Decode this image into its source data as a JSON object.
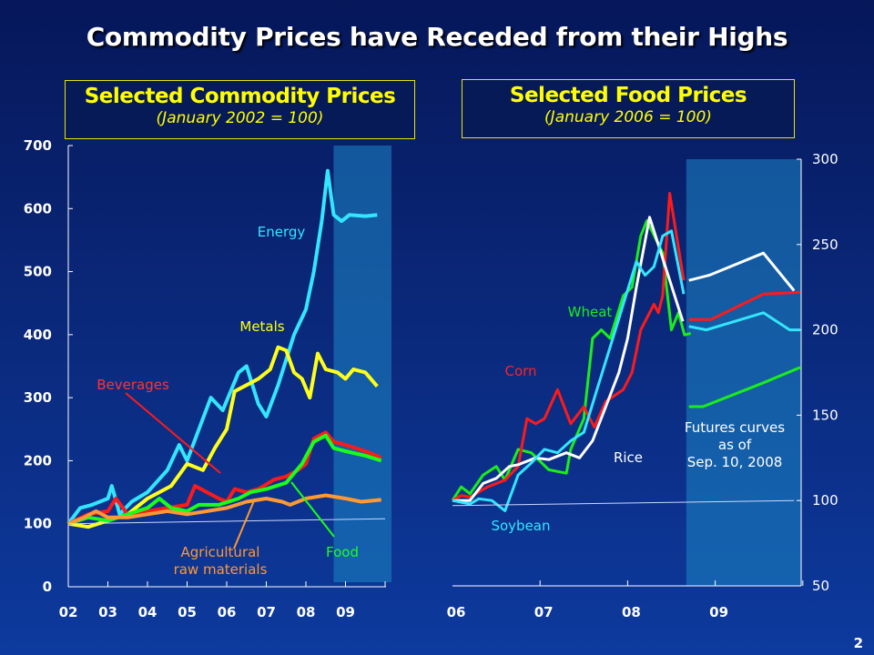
{
  "title": "Commodity Prices have Receded from their Highs",
  "page_number": "2",
  "chart_data": [
    {
      "type": "line",
      "title": "Selected Commodity Prices",
      "subtitle": "(January 2002 = 100)",
      "xlabel": "",
      "ylabel": "",
      "x_ticks": [
        "02",
        "03",
        "04",
        "05",
        "06",
        "07",
        "08",
        "09"
      ],
      "y_ticks": [
        "0",
        "100",
        "200",
        "300",
        "400",
        "500",
        "600",
        "700"
      ],
      "ylim": [
        0,
        700
      ],
      "xlim": [
        2002,
        2010
      ],
      "y_axis": "left",
      "shaded_forecast_region": [
        2008.7,
        2010
      ],
      "series": [
        {
          "name": "Energy",
          "color": "#33e6ff",
          "points": [
            [
              2002,
              100
            ],
            [
              2002.3,
              125
            ],
            [
              2002.6,
              130
            ],
            [
              2003,
              140
            ],
            [
              2003.1,
              160
            ],
            [
              2003.3,
              115
            ],
            [
              2003.6,
              135
            ],
            [
              2004,
              150
            ],
            [
              2004.5,
              185
            ],
            [
              2004.8,
              225
            ],
            [
              2005,
              200
            ],
            [
              2005.3,
              250
            ],
            [
              2005.6,
              300
            ],
            [
              2005.9,
              280
            ],
            [
              2006.3,
              340
            ],
            [
              2006.5,
              350
            ],
            [
              2006.8,
              290
            ],
            [
              2007,
              270
            ],
            [
              2007.3,
              320
            ],
            [
              2007.7,
              400
            ],
            [
              2008,
              440
            ],
            [
              2008.2,
              500
            ],
            [
              2008.4,
              580
            ],
            [
              2008.55,
              660
            ],
            [
              2008.7,
              590
            ],
            [
              2008.9,
              580
            ],
            [
              2009.1,
              590
            ],
            [
              2009.5,
              588
            ],
            [
              2009.8,
              590
            ]
          ]
        },
        {
          "name": "Metals",
          "color": "#ffff1a",
          "points": [
            [
              2002,
              100
            ],
            [
              2002.5,
              95
            ],
            [
              2003,
              105
            ],
            [
              2003.5,
              115
            ],
            [
              2004,
              140
            ],
            [
              2004.3,
              150
            ],
            [
              2004.6,
              160
            ],
            [
              2005,
              195
            ],
            [
              2005.4,
              185
            ],
            [
              2005.7,
              220
            ],
            [
              2006,
              250
            ],
            [
              2006.2,
              310
            ],
            [
              2006.5,
              320
            ],
            [
              2006.8,
              330
            ],
            [
              2007.1,
              345
            ],
            [
              2007.3,
              380
            ],
            [
              2007.5,
              375
            ],
            [
              2007.7,
              340
            ],
            [
              2007.9,
              330
            ],
            [
              2008.1,
              300
            ],
            [
              2008.3,
              370
            ],
            [
              2008.5,
              345
            ],
            [
              2008.8,
              340
            ],
            [
              2009,
              330
            ],
            [
              2009.2,
              345
            ],
            [
              2009.5,
              340
            ],
            [
              2009.8,
              318
            ]
          ]
        },
        {
          "name": "Beverages",
          "color": "#ff1a1a",
          "points": [
            [
              2002,
              100
            ],
            [
              2002.5,
              115
            ],
            [
              2003,
              120
            ],
            [
              2003.2,
              140
            ],
            [
              2003.5,
              115
            ],
            [
              2004,
              120
            ],
            [
              2004.5,
              125
            ],
            [
              2005,
              130
            ],
            [
              2005.2,
              160
            ],
            [
              2005.5,
              150
            ],
            [
              2005.8,
              140
            ],
            [
              2006,
              135
            ],
            [
              2006.2,
              155
            ],
            [
              2006.5,
              150
            ],
            [
              2006.8,
              155
            ],
            [
              2007.2,
              170
            ],
            [
              2007.5,
              175
            ],
            [
              2007.8,
              185
            ],
            [
              2008,
              195
            ],
            [
              2008.2,
              235
            ],
            [
              2008.5,
              245
            ],
            [
              2008.7,
              230
            ],
            [
              2009,
              225
            ],
            [
              2009.5,
              215
            ],
            [
              2009.9,
              205
            ]
          ]
        },
        {
          "name": "Food",
          "color": "#1aff1a",
          "points": [
            [
              2002,
              100
            ],
            [
              2002.5,
              110
            ],
            [
              2003,
              105
            ],
            [
              2003.5,
              115
            ],
            [
              2004,
              125
            ],
            [
              2004.3,
              140
            ],
            [
              2004.6,
              125
            ],
            [
              2005,
              120
            ],
            [
              2005.3,
              130
            ],
            [
              2005.8,
              130
            ],
            [
              2006.3,
              140
            ],
            [
              2006.6,
              150
            ],
            [
              2007,
              155
            ],
            [
              2007.5,
              165
            ],
            [
              2007.9,
              195
            ],
            [
              2008.2,
              230
            ],
            [
              2008.5,
              240
            ],
            [
              2008.7,
              220
            ],
            [
              2009,
              215
            ],
            [
              2009.5,
              208
            ],
            [
              2009.9,
              200
            ]
          ]
        },
        {
          "name": "Agricultural raw materials",
          "color": "#ff9933",
          "points": [
            [
              2002,
              100
            ],
            [
              2002.4,
              110
            ],
            [
              2002.7,
              120
            ],
            [
              2003,
              110
            ],
            [
              2003.5,
              110
            ],
            [
              2004,
              115
            ],
            [
              2004.5,
              120
            ],
            [
              2005,
              115
            ],
            [
              2005.5,
              120
            ],
            [
              2006,
              125
            ],
            [
              2006.5,
              135
            ],
            [
              2007,
              140
            ],
            [
              2007.4,
              135
            ],
            [
              2007.6,
              130
            ],
            [
              2008,
              140
            ],
            [
              2008.5,
              145
            ],
            [
              2009,
              140
            ],
            [
              2009.4,
              135
            ],
            [
              2009.9,
              138
            ]
          ]
        },
        {
          "name": "",
          "color": "#ccd6ff",
          "points": [
            [
              2002,
              100
            ],
            [
              2010,
              108
            ]
          ]
        }
      ],
      "labels": {
        "energy": "Energy",
        "metals": "Metals",
        "beverages": "Beverages",
        "agri_1": "Agricultural",
        "agri_2": "raw materials",
        "food": "Food"
      }
    },
    {
      "type": "line",
      "title": "Selected Food Prices",
      "subtitle": "(January 2006 = 100)",
      "xlabel": "",
      "ylabel": "",
      "x_ticks": [
        "06",
        "07",
        "08",
        "09"
      ],
      "y_ticks": [
        "50",
        "100",
        "150",
        "200",
        "250",
        "300"
      ],
      "ylim": [
        50,
        300
      ],
      "xlim": [
        2006,
        2010
      ],
      "y_axis": "right",
      "shaded_forecast_region": [
        2008.67,
        2010
      ],
      "series": [
        {
          "name": "Wheat",
          "color": "#1aee1a",
          "points": [
            [
              2006,
              100
            ],
            [
              2006.1,
              108
            ],
            [
              2006.2,
              104
            ],
            [
              2006.35,
              115
            ],
            [
              2006.5,
              120
            ],
            [
              2006.6,
              112
            ],
            [
              2006.75,
              130
            ],
            [
              2006.9,
              128
            ],
            [
              2007.1,
              118
            ],
            [
              2007.3,
              116
            ],
            [
              2007.35,
              130
            ],
            [
              2007.5,
              148
            ],
            [
              2007.6,
              195
            ],
            [
              2007.7,
              200
            ],
            [
              2007.8,
              195
            ],
            [
              2007.95,
              220
            ],
            [
              2008.05,
              225
            ],
            [
              2008.15,
              255
            ],
            [
              2008.22,
              264
            ],
            [
              2008.4,
              245
            ],
            [
              2008.5,
              200
            ],
            [
              2008.58,
              210
            ],
            [
              2008.65,
              197
            ],
            [
              2008.72,
              198
            ]
          ]
        },
        {
          "name": "Corn",
          "color": "#ff1a1a",
          "points": [
            [
              2006,
              100
            ],
            [
              2006.1,
              103
            ],
            [
              2006.2,
              102
            ],
            [
              2006.4,
              108
            ],
            [
              2006.6,
              112
            ],
            [
              2006.75,
              120
            ],
            [
              2006.85,
              148
            ],
            [
              2006.95,
              145
            ],
            [
              2007.05,
              148
            ],
            [
              2007.2,
              165
            ],
            [
              2007.35,
              145
            ],
            [
              2007.5,
              155
            ],
            [
              2007.62,
              143
            ],
            [
              2007.75,
              158
            ],
            [
              2007.95,
              165
            ],
            [
              2008.05,
              175
            ],
            [
              2008.15,
              200
            ],
            [
              2008.3,
              215
            ],
            [
              2008.35,
              210
            ],
            [
              2008.4,
              220
            ],
            [
              2008.48,
              280
            ],
            [
              2008.64,
              229
            ]
          ]
        },
        {
          "name": "Rice",
          "color": "#ffffff",
          "points": [
            [
              2006,
              100
            ],
            [
              2006.2,
              100
            ],
            [
              2006.35,
              110
            ],
            [
              2006.5,
              113
            ],
            [
              2006.65,
              120
            ],
            [
              2006.75,
              121
            ],
            [
              2006.95,
              125
            ],
            [
              2007.1,
              124
            ],
            [
              2007.3,
              128
            ],
            [
              2007.45,
              125
            ],
            [
              2007.6,
              135
            ],
            [
              2007.75,
              155
            ],
            [
              2007.9,
              175
            ],
            [
              2008,
              195
            ],
            [
              2008.1,
              225
            ],
            [
              2008.25,
              266
            ],
            [
              2008.63,
              205
            ]
          ]
        },
        {
          "name": "Soybean",
          "color": "#33e6ff",
          "points": [
            [
              2006,
              100
            ],
            [
              2006.2,
              98
            ],
            [
              2006.3,
              101
            ],
            [
              2006.45,
              100
            ],
            [
              2006.6,
              94
            ],
            [
              2006.75,
              115
            ],
            [
              2006.9,
              122
            ],
            [
              2007.05,
              130
            ],
            [
              2007.2,
              128
            ],
            [
              2007.35,
              135
            ],
            [
              2007.5,
              140
            ],
            [
              2007.65,
              165
            ],
            [
              2007.8,
              190
            ],
            [
              2007.95,
              215
            ],
            [
              2008.1,
              240
            ],
            [
              2008.2,
              232
            ],
            [
              2008.3,
              237
            ],
            [
              2008.4,
              255
            ],
            [
              2008.5,
              258
            ],
            [
              2008.64,
              221
            ]
          ]
        },
        {
          "name": "Rice futures",
          "color": "#ffffff",
          "points": [
            [
              2008.7,
              229
            ],
            [
              2008.93,
              232
            ],
            [
              2009.55,
              245
            ],
            [
              2009.9,
              223
            ]
          ]
        },
        {
          "name": "Corn futures",
          "color": "#ff1a1a",
          "points": [
            [
              2008.7,
              206
            ],
            [
              2008.95,
              206
            ],
            [
              2009.55,
              221
            ],
            [
              2009.97,
              222
            ]
          ]
        },
        {
          "name": "Soybean futures",
          "color": "#33e6ff",
          "points": [
            [
              2008.7,
              202
            ],
            [
              2008.9,
              200
            ],
            [
              2009.55,
              210
            ],
            [
              2009.85,
              200
            ],
            [
              2009.97,
              200
            ]
          ]
        },
        {
          "name": "Wheat futures",
          "color": "#1aee1a",
          "points": [
            [
              2008.7,
              155
            ],
            [
              2008.86,
              155
            ],
            [
              2009.55,
              169
            ],
            [
              2009.97,
              178
            ]
          ]
        },
        {
          "name": "",
          "color": "#ccd6ff",
          "points": [
            [
              2006,
              97
            ],
            [
              2009.9,
              100
            ]
          ]
        }
      ],
      "labels": {
        "wheat": "Wheat",
        "corn": "Corn",
        "rice": "Rice",
        "soybean": "Soybean",
        "futures_1": "Futures curves",
        "futures_2": "as of",
        "futures_3": "Sep. 10, 2008"
      }
    }
  ]
}
